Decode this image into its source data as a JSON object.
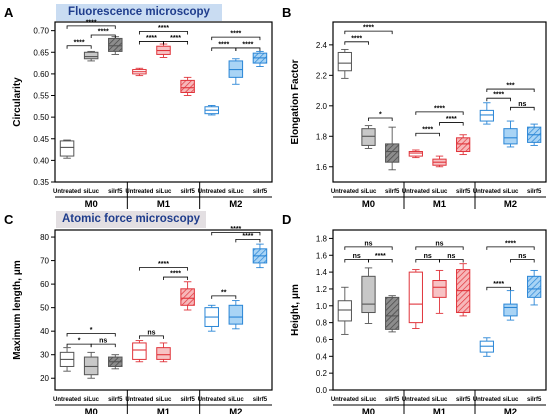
{
  "section_titles": {
    "top": "Fluorescence microscopy",
    "bottom": "Atomic force microscopy"
  },
  "colors": {
    "M0": "#555555",
    "M1": "#e0333a",
    "M2": "#2a86d6"
  },
  "chart_data": [
    {
      "panel": "A",
      "type": "box",
      "ylabel": "Circularity",
      "ylim": [
        0.35,
        0.72
      ],
      "yticks": [
        "0.35",
        "0.40",
        "0.45",
        "0.50",
        "0.55",
        "0.60",
        "0.65",
        "0.70"
      ],
      "groups": [
        "M0",
        "M1",
        "M2"
      ],
      "conditions": [
        "Untreated",
        "siLuc",
        "siIrf5"
      ],
      "boxes": [
        {
          "group": "M0",
          "condition": "Untreated",
          "min": 0.405,
          "q1": 0.41,
          "median": 0.43,
          "q3": 0.445,
          "max": 0.447
        },
        {
          "group": "M0",
          "condition": "siLuc",
          "min": 0.63,
          "q1": 0.635,
          "median": 0.64,
          "q3": 0.65,
          "max": 0.652
        },
        {
          "group": "M0",
          "condition": "siIrf5",
          "min": 0.645,
          "q1": 0.652,
          "median": 0.665,
          "q3": 0.682,
          "max": 0.686
        },
        {
          "group": "M1",
          "condition": "Untreated",
          "min": 0.596,
          "q1": 0.6,
          "median": 0.605,
          "q3": 0.61,
          "max": 0.613
        },
        {
          "group": "M1",
          "condition": "siLuc",
          "min": 0.638,
          "q1": 0.645,
          "median": 0.654,
          "q3": 0.664,
          "max": 0.669
        },
        {
          "group": "M1",
          "condition": "siIrf5",
          "min": 0.55,
          "q1": 0.557,
          "median": 0.568,
          "q3": 0.585,
          "max": 0.592
        },
        {
          "group": "M2",
          "condition": "Untreated",
          "min": 0.505,
          "q1": 0.508,
          "median": 0.516,
          "q3": 0.524,
          "max": 0.527
        },
        {
          "group": "M2",
          "condition": "siLuc",
          "min": 0.576,
          "q1": 0.592,
          "median": 0.61,
          "q3": 0.63,
          "max": 0.635
        },
        {
          "group": "M2",
          "condition": "siIrf5",
          "min": 0.617,
          "q1": 0.625,
          "median": 0.637,
          "q3": 0.648,
          "max": 0.652
        }
      ],
      "brackets": [
        {
          "group": "M0",
          "from": "Untreated",
          "to": "siLuc",
          "y": 0.665,
          "label": "****"
        },
        {
          "group": "M0",
          "from": "siLuc",
          "to": "siIrf5",
          "y": 0.69,
          "label": "****"
        },
        {
          "group": "M0",
          "from": "Untreated",
          "to": "siIrf5",
          "y": 0.711,
          "label": "****"
        },
        {
          "group": "M1",
          "from": "Untreated",
          "to": "siLuc",
          "y": 0.675,
          "label": "****"
        },
        {
          "group": "M1",
          "from": "siLuc",
          "to": "siIrf5",
          "y": 0.675,
          "label": "****"
        },
        {
          "group": "M1",
          "from": "Untreated",
          "to": "siIrf5",
          "y": 0.698,
          "label": "****"
        },
        {
          "group": "M2",
          "from": "Untreated",
          "to": "siLuc",
          "y": 0.66,
          "label": "****"
        },
        {
          "group": "M2",
          "from": "siLuc",
          "to": "siIrf5",
          "y": 0.66,
          "label": "****"
        },
        {
          "group": "M2",
          "from": "Untreated",
          "to": "siIrf5",
          "y": 0.685,
          "label": "****"
        }
      ]
    },
    {
      "panel": "B",
      "type": "box",
      "ylabel": "Elongation Factor",
      "ylim": [
        1.5,
        2.55
      ],
      "yticks": [
        "1.6",
        "1.8",
        "2.0",
        "2.2",
        "2.4"
      ],
      "groups": [
        "M0",
        "M1",
        "M2"
      ],
      "conditions": [
        "Untreated",
        "siLuc",
        "siIrf5"
      ],
      "boxes": [
        {
          "group": "M0",
          "condition": "Untreated",
          "min": 2.18,
          "q1": 2.23,
          "median": 2.28,
          "q3": 2.35,
          "max": 2.37
        },
        {
          "group": "M0",
          "condition": "siLuc",
          "min": 1.72,
          "q1": 1.74,
          "median": 1.8,
          "q3": 1.85,
          "max": 1.87
        },
        {
          "group": "M0",
          "condition": "siIrf5",
          "min": 1.58,
          "q1": 1.63,
          "median": 1.7,
          "q3": 1.75,
          "max": 1.86
        },
        {
          "group": "M1",
          "condition": "Untreated",
          "min": 1.66,
          "q1": 1.67,
          "median": 1.69,
          "q3": 1.7,
          "max": 1.71
        },
        {
          "group": "M1",
          "condition": "siLuc",
          "min": 1.6,
          "q1": 1.61,
          "median": 1.63,
          "q3": 1.65,
          "max": 1.67
        },
        {
          "group": "M1",
          "condition": "siIrf5",
          "min": 1.68,
          "q1": 1.7,
          "median": 1.75,
          "q3": 1.79,
          "max": 1.81
        },
        {
          "group": "M2",
          "condition": "Untreated",
          "min": 1.88,
          "q1": 1.9,
          "median": 1.94,
          "q3": 1.97,
          "max": 2.02
        },
        {
          "group": "M2",
          "condition": "siLuc",
          "min": 1.73,
          "q1": 1.75,
          "median": 1.79,
          "q3": 1.85,
          "max": 1.9
        },
        {
          "group": "M2",
          "condition": "siIrf5",
          "min": 1.74,
          "q1": 1.76,
          "median": 1.81,
          "q3": 1.86,
          "max": 1.88
        }
      ],
      "brackets": [
        {
          "group": "M0",
          "from": "Untreated",
          "to": "siLuc",
          "y": 2.42,
          "label": "****"
        },
        {
          "group": "M0",
          "from": "Untreated",
          "to": "siIrf5",
          "y": 2.49,
          "label": "****"
        },
        {
          "group": "M0",
          "from": "siLuc",
          "to": "siIrf5",
          "y": 1.92,
          "label": "*"
        },
        {
          "group": "M1",
          "from": "Untreated",
          "to": "siLuc",
          "y": 1.82,
          "label": "****"
        },
        {
          "group": "M1",
          "from": "siLuc",
          "to": "siIrf5",
          "y": 1.89,
          "label": "****"
        },
        {
          "group": "M1",
          "from": "Untreated",
          "to": "siIrf5",
          "y": 1.96,
          "label": "****"
        },
        {
          "group": "M2",
          "from": "Untreated",
          "to": "siLuc",
          "y": 2.05,
          "label": "****"
        },
        {
          "group": "M2",
          "from": "siLuc",
          "to": "siIrf5",
          "y": 1.99,
          "label": "ns"
        },
        {
          "group": "M2",
          "from": "Untreated",
          "to": "siIrf5",
          "y": 2.11,
          "label": "***"
        }
      ]
    },
    {
      "panel": "C",
      "type": "box",
      "ylabel": "Maximum length, μm",
      "ylim": [
        15,
        83
      ],
      "yticks": [
        "20",
        "30",
        "40",
        "50",
        "60",
        "70",
        "80"
      ],
      "groups": [
        "M0",
        "M1",
        "M2"
      ],
      "conditions": [
        "Untreated",
        "siLuc",
        "siIrf5"
      ],
      "boxes": [
        {
          "group": "M0",
          "condition": "Untreated",
          "min": 23,
          "q1": 25,
          "median": 28,
          "q3": 31,
          "max": 33
        },
        {
          "group": "M0",
          "condition": "siLuc",
          "min": 20,
          "q1": 21.5,
          "median": 25,
          "q3": 29,
          "max": 31
        },
        {
          "group": "M0",
          "condition": "siIrf5",
          "min": 24,
          "q1": 25,
          "median": 27,
          "q3": 29,
          "max": 30
        },
        {
          "group": "M1",
          "condition": "Untreated",
          "min": 27,
          "q1": 28,
          "median": 32,
          "q3": 35,
          "max": 36
        },
        {
          "group": "M1",
          "condition": "siLuc",
          "min": 27,
          "q1": 28,
          "median": 30,
          "q3": 33,
          "max": 35
        },
        {
          "group": "M1",
          "condition": "siIrf5",
          "min": 49,
          "q1": 51,
          "median": 54,
          "q3": 58,
          "max": 61
        },
        {
          "group": "M2",
          "condition": "Untreated",
          "min": 40,
          "q1": 42,
          "median": 46,
          "q3": 50,
          "max": 51
        },
        {
          "group": "M2",
          "condition": "siLuc",
          "min": 41,
          "q1": 43,
          "median": 46,
          "q3": 51,
          "max": 53
        },
        {
          "group": "M2",
          "condition": "siIrf5",
          "min": 67,
          "q1": 69,
          "median": 72,
          "q3": 75,
          "max": 77
        }
      ],
      "brackets": [
        {
          "group": "M0",
          "from": "Untreated",
          "to": "siLuc",
          "y": 34.5,
          "label": "*"
        },
        {
          "group": "M0",
          "from": "siLuc",
          "to": "siIrf5",
          "y": 34.5,
          "label": "ns"
        },
        {
          "group": "M0",
          "from": "Untreated",
          "to": "siIrf5",
          "y": 39,
          "label": "*"
        },
        {
          "group": "M1",
          "from": "Untreated",
          "to": "siLuc",
          "y": 38,
          "label": "ns"
        },
        {
          "group": "M1",
          "from": "siLuc",
          "to": "siIrf5",
          "y": 63,
          "label": "****"
        },
        {
          "group": "M1",
          "from": "Untreated",
          "to": "siIrf5",
          "y": 67,
          "label": "****"
        },
        {
          "group": "M2",
          "from": "Untreated",
          "to": "siLuc",
          "y": 55,
          "label": "**"
        },
        {
          "group": "M2",
          "from": "siLuc",
          "to": "siIrf5",
          "y": 79,
          "label": "****"
        },
        {
          "group": "M2",
          "from": "Untreated",
          "to": "siIrf5",
          "y": 82,
          "label": "****"
        }
      ]
    },
    {
      "panel": "D",
      "type": "box",
      "ylabel": "Height, μm",
      "ylim": [
        0.0,
        1.9
      ],
      "yticks": [
        "0.0",
        "0.2",
        "0.4",
        "0.6",
        "0.8",
        "1.0",
        "1.2",
        "1.4",
        "1.6",
        "1.8"
      ],
      "groups": [
        "M0",
        "M1",
        "M2"
      ],
      "conditions": [
        "Untreated",
        "siLuc",
        "siIrf5"
      ],
      "boxes": [
        {
          "group": "M0",
          "condition": "Untreated",
          "min": 0.66,
          "q1": 0.82,
          "median": 0.95,
          "q3": 1.06,
          "max": 1.22
        },
        {
          "group": "M0",
          "condition": "siLuc",
          "min": 0.79,
          "q1": 0.92,
          "median": 1.02,
          "q3": 1.35,
          "max": 1.45
        },
        {
          "group": "M0",
          "condition": "siIrf5",
          "min": 0.69,
          "q1": 0.72,
          "median": 0.88,
          "q3": 1.1,
          "max": 1.12
        },
        {
          "group": "M1",
          "condition": "Untreated",
          "min": 0.73,
          "q1": 0.8,
          "median": 1.02,
          "q3": 1.4,
          "max": 1.43
        },
        {
          "group": "M1",
          "condition": "siLuc",
          "min": 0.91,
          "q1": 1.1,
          "median": 1.22,
          "q3": 1.3,
          "max": 1.42
        },
        {
          "group": "M1",
          "condition": "siIrf5",
          "min": 0.88,
          "q1": 0.92,
          "median": 1.18,
          "q3": 1.43,
          "max": 1.5
        },
        {
          "group": "M2",
          "condition": "Untreated",
          "min": 0.4,
          "q1": 0.45,
          "median": 0.52,
          "q3": 0.58,
          "max": 0.62
        },
        {
          "group": "M2",
          "condition": "siLuc",
          "min": 0.83,
          "q1": 0.88,
          "median": 0.98,
          "q3": 1.02,
          "max": 1.18
        },
        {
          "group": "M2",
          "condition": "siIrf5",
          "min": 1.01,
          "q1": 1.1,
          "median": 1.2,
          "q3": 1.35,
          "max": 1.42
        }
      ],
      "brackets": [
        {
          "group": "M0",
          "from": "Untreated",
          "to": "siLuc",
          "y": 1.55,
          "label": "ns"
        },
        {
          "group": "M0",
          "from": "siLuc",
          "to": "siIrf5",
          "y": 1.55,
          "label": "****"
        },
        {
          "group": "M0",
          "from": "Untreated",
          "to": "siIrf5",
          "y": 1.7,
          "label": "ns"
        },
        {
          "group": "M1",
          "from": "Untreated",
          "to": "siLuc",
          "y": 1.55,
          "label": "ns"
        },
        {
          "group": "M1",
          "from": "siLuc",
          "to": "siIrf5",
          "y": 1.55,
          "label": "ns"
        },
        {
          "group": "M1",
          "from": "Untreated",
          "to": "siIrf5",
          "y": 1.7,
          "label": "ns"
        },
        {
          "group": "M2",
          "from": "Untreated",
          "to": "siLuc",
          "y": 1.22,
          "label": "****"
        },
        {
          "group": "M2",
          "from": "siLuc",
          "to": "siIrf5",
          "y": 1.55,
          "label": "ns"
        },
        {
          "group": "M2",
          "from": "Untreated",
          "to": "siIrf5",
          "y": 1.7,
          "label": "****"
        }
      ]
    }
  ]
}
